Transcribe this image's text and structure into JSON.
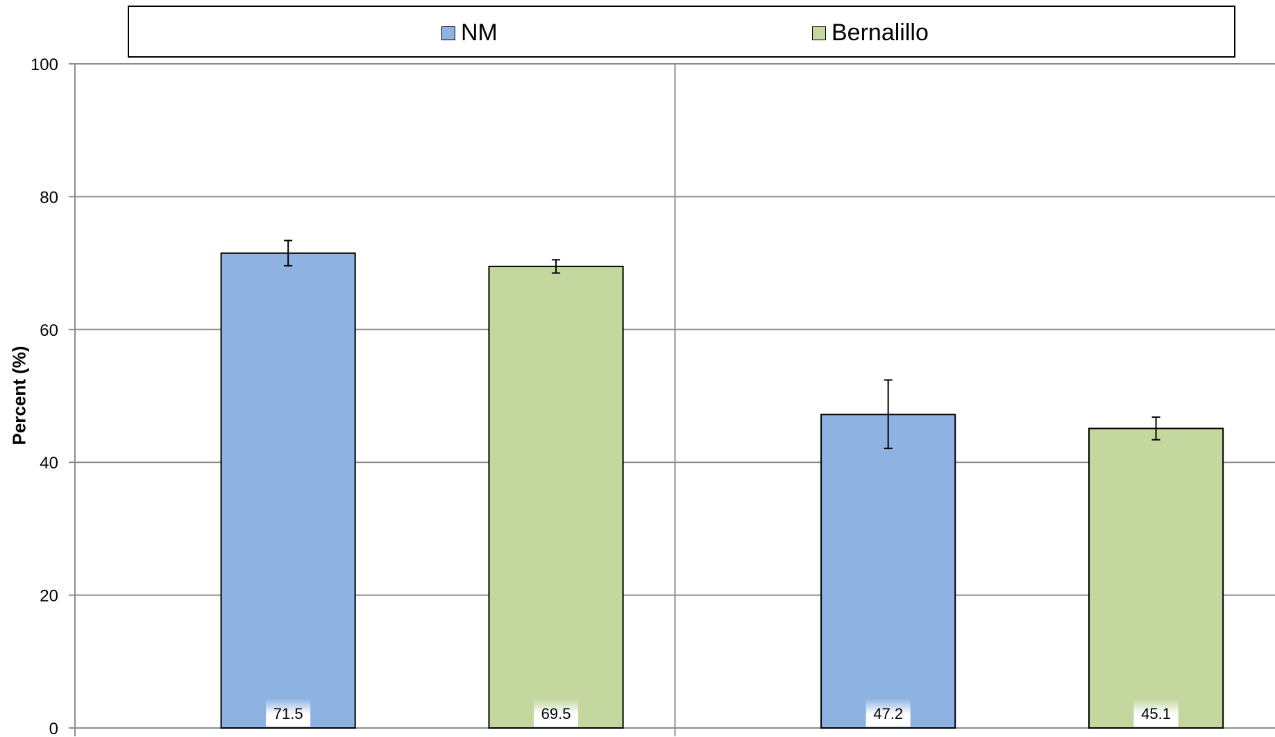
{
  "chart_data": {
    "type": "bar",
    "categories": [
      "",
      ""
    ],
    "series": [
      {
        "name": "NM",
        "color": "#8EB3E2",
        "values": [
          71.5,
          47.2
        ],
        "error": [
          [
            69.6,
            73.4
          ],
          [
            42.1,
            52.4
          ]
        ]
      },
      {
        "name": "Bernalillo",
        "color": "#C4D79E",
        "values": [
          69.5,
          45.1
        ],
        "error": [
          [
            68.5,
            70.5
          ],
          [
            43.4,
            46.8
          ]
        ]
      }
    ],
    "ylabel": "Percent (%)",
    "ylim": [
      0,
      100
    ],
    "yticks": [
      "0",
      "20",
      "40",
      "60",
      "80",
      "100"
    ],
    "data_labels": [
      "71.5",
      "69.5",
      "47.2",
      "45.1"
    ],
    "grid": true,
    "legend": "top"
  }
}
